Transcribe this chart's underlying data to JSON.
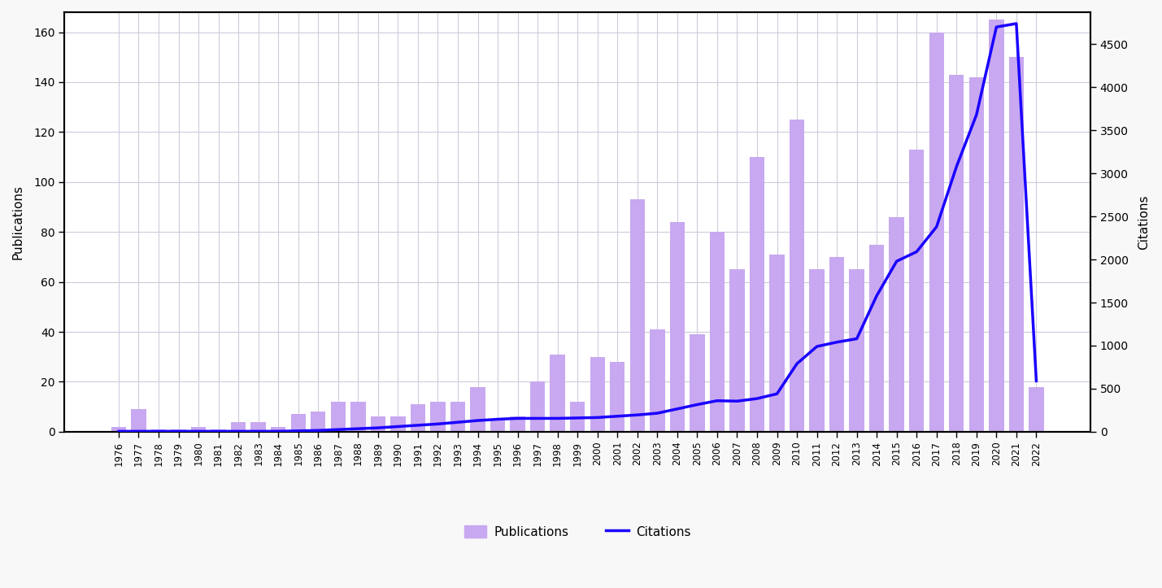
{
  "years": [
    1976,
    1977,
    1978,
    1979,
    1980,
    1981,
    1982,
    1983,
    1984,
    1985,
    1986,
    1987,
    1988,
    1989,
    1990,
    1991,
    1992,
    1993,
    1994,
    1995,
    1996,
    1997,
    1998,
    1999,
    2000,
    2001,
    2002,
    2003,
    2004,
    2005,
    2006,
    2007,
    2008,
    2009,
    2010,
    2011,
    2012,
    2013,
    2014,
    2015,
    2016,
    2017,
    2018,
    2019,
    2020,
    2021,
    2022
  ],
  "publications": [
    2,
    9,
    1,
    1,
    2,
    1,
    4,
    4,
    2,
    7,
    8,
    12,
    12,
    6,
    6,
    11,
    12,
    12,
    18,
    5,
    6,
    20,
    31,
    12,
    30,
    28,
    93,
    41,
    84,
    39,
    80,
    65,
    110,
    71,
    125,
    65,
    70,
    65,
    75,
    86,
    113,
    160,
    143,
    142,
    165,
    150,
    18
  ],
  "citations": [
    5,
    5,
    5,
    5,
    5,
    5,
    5,
    5,
    5,
    10,
    15,
    25,
    35,
    45,
    60,
    75,
    90,
    110,
    130,
    145,
    155,
    155,
    155,
    160,
    165,
    180,
    195,
    215,
    265,
    315,
    360,
    355,
    385,
    440,
    790,
    990,
    1040,
    1080,
    1580,
    1980,
    2090,
    2380,
    3080,
    3680,
    4700,
    4740,
    590
  ],
  "bar_color": "#c8a8f0",
  "line_color": "#1a00ff",
  "ylabel_left": "Publications",
  "ylabel_right": "Citations",
  "ylim_left": [
    0,
    168
  ],
  "ylim_right": [
    0,
    4872
  ],
  "yticks_left": [
    0,
    20,
    40,
    60,
    80,
    100,
    120,
    140,
    160
  ],
  "yticks_right": [
    0,
    500,
    1000,
    1500,
    2000,
    2500,
    3000,
    3500,
    4000,
    4500
  ],
  "legend_labels": [
    "Publications",
    "Citations"
  ],
  "background_color": "#ffffff",
  "grid_color": "#ccccdd",
  "spine_color": "#000000",
  "fig_background": "#f8f8f8"
}
